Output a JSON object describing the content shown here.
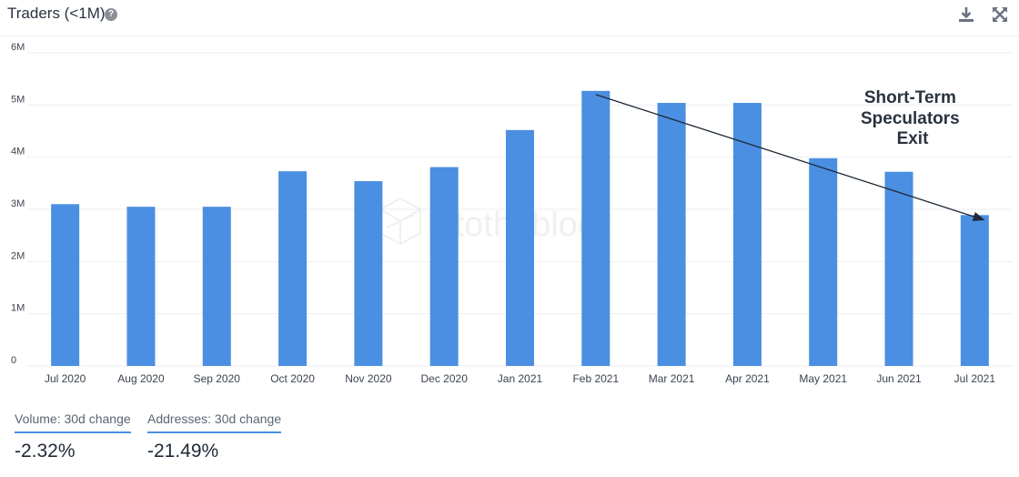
{
  "header": {
    "title": "Traders (<1M)",
    "help_glyph": "?",
    "icons": [
      "help-icon",
      "download-icon",
      "expand-icon"
    ]
  },
  "chart_data": {
    "type": "bar",
    "categories": [
      "Jul 2020",
      "Aug 2020",
      "Sep 2020",
      "Oct 2020",
      "Nov 2020",
      "Dec 2020",
      "Jan 2021",
      "Feb 2021",
      "Mar 2021",
      "Apr 2021",
      "May 2021",
      "Jun 2021",
      "Jul 2021"
    ],
    "values": [
      3100000,
      3050000,
      3050000,
      3730000,
      3540000,
      3810000,
      4520000,
      5270000,
      5040000,
      5040000,
      3980000,
      3720000,
      2890000
    ],
    "ylim": [
      0,
      6000000
    ],
    "yticks": [
      0,
      1000000,
      2000000,
      3000000,
      4000000,
      5000000,
      6000000
    ],
    "ytick_labels": [
      "0",
      "1M",
      "2M",
      "3M",
      "4M",
      "5M",
      "6M"
    ],
    "grid": true,
    "bar_color": "#4a8fe2",
    "watermark": "intotheblock",
    "annotation": {
      "lines": [
        "Short-Term",
        "Speculators",
        "Exit"
      ],
      "arrow_from": {
        "category": "Feb 2021",
        "value": 5200000
      },
      "arrow_to": {
        "category": "Jul 2021",
        "value": 2800000
      }
    }
  },
  "stats": {
    "volume": {
      "label": "Volume: 30d change",
      "value": "-2.32%"
    },
    "addresses": {
      "label": "Addresses: 30d change",
      "value": "-21.49%"
    }
  }
}
